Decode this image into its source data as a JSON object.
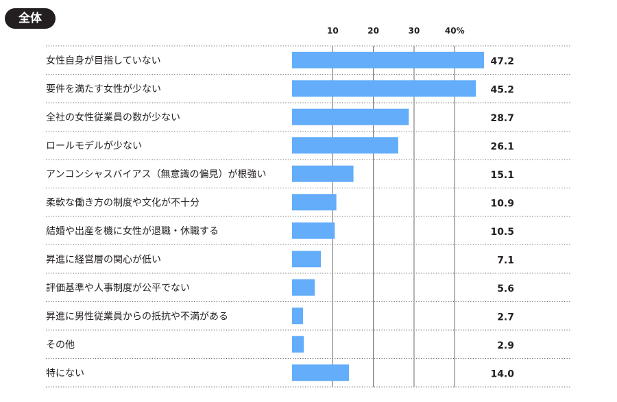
{
  "title": "全体",
  "colors": {
    "bar": "#63adfa",
    "text": "#231f20",
    "badge": "#231f20",
    "grid": "#666666"
  },
  "chart_data": {
    "type": "bar",
    "orientation": "horizontal",
    "title": "全体",
    "tick_labels": [
      "10",
      "20",
      "30",
      "40%"
    ],
    "ticks": [
      10,
      20,
      30,
      40
    ],
    "xlim": [
      0,
      47.2
    ],
    "categories": [
      "女性自身が目指していない",
      "要件を満たす女性が少ない",
      "全社の女性従業員の数が少ない",
      "ロールモデルが少ない",
      "アンコンシャスバイアス（無意識の偏見）が根強い",
      "柔軟な働き方の制度や文化が不十分",
      "結婚や出産を機に女性が退職・休職する",
      "昇進に経営層の関心が低い",
      "評価基準や人事制度が公平でない",
      "昇進に男性従業員からの抵抗や不満がある",
      "その他",
      "特にない"
    ],
    "values": [
      47.2,
      45.2,
      28.7,
      26.1,
      15.1,
      10.9,
      10.5,
      7.1,
      5.6,
      2.7,
      2.9,
      14.0
    ],
    "value_labels": [
      "47.2",
      "45.2",
      "28.7",
      "26.1",
      "15.1",
      "10.9",
      "10.5",
      "7.1",
      "5.6",
      "2.7",
      "2.9",
      "14.0"
    ]
  }
}
